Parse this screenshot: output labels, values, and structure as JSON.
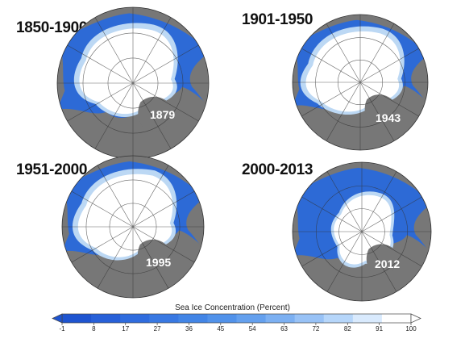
{
  "panels": [
    {
      "period": "1850-1900",
      "year": "1879"
    },
    {
      "period": "1901-1950",
      "year": "1943"
    },
    {
      "period": "1951-2000",
      "year": "1995"
    },
    {
      "period": "2000-2013",
      "year": "2012"
    }
  ],
  "colors": {
    "ocean": "#2d6ad6",
    "land": "#777777",
    "ice": "#ffffff",
    "ice_edge": "#bcd8f4",
    "grid": "#333333"
  },
  "colorbar": {
    "title": "Sea Ice Concentration (Percent)",
    "ticks": [
      "-1",
      "8",
      "17",
      "27",
      "36",
      "45",
      "54",
      "63",
      "72",
      "82",
      "91",
      "100"
    ],
    "colors": [
      "#1e54d0",
      "#2760d8",
      "#2f6cde",
      "#3878e2",
      "#4285e6",
      "#5192ea",
      "#64a0ee",
      "#7cb0f2",
      "#98c2f6",
      "#b6d6fa",
      "#d9eafd",
      "#ffffff"
    ]
  }
}
